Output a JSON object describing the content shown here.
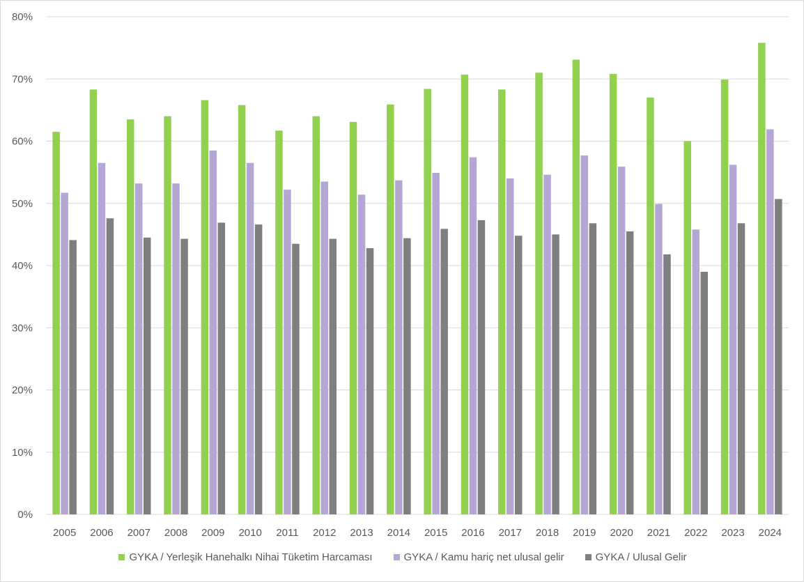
{
  "chart_data": {
    "type": "bar",
    "title": "",
    "xlabel": "",
    "ylabel": "",
    "ylim": [
      0,
      80
    ],
    "y_ticks": [
      "0%",
      "10%",
      "20%",
      "30%",
      "40%",
      "50%",
      "60%",
      "70%",
      "80%"
    ],
    "grid": true,
    "legend_position": "bottom",
    "categories": [
      "2005",
      "2006",
      "2007",
      "2008",
      "2009",
      "2010",
      "2011",
      "2012",
      "2013",
      "2014",
      "2015",
      "2016",
      "2017",
      "2018",
      "2019",
      "2020",
      "2021",
      "2022",
      "2023",
      "2024"
    ],
    "series": [
      {
        "name": "GYKA / Yerleşik Hanehalkı Nihai Tüketim Harcaması",
        "color": "#92d050",
        "values": [
          61.5,
          68.3,
          63.5,
          64.0,
          66.6,
          65.8,
          61.7,
          64.0,
          63.1,
          65.9,
          68.4,
          70.7,
          68.3,
          71.0,
          73.1,
          70.8,
          67.0,
          60.0,
          69.9,
          75.8
        ]
      },
      {
        "name": "GYKA / Kamu hariç net ulusal gelir",
        "color": "#b4a7d6",
        "values": [
          51.7,
          56.5,
          53.2,
          53.2,
          58.5,
          56.5,
          52.2,
          53.5,
          51.4,
          53.7,
          54.9,
          57.4,
          54.0,
          54.6,
          57.7,
          55.9,
          49.9,
          45.8,
          56.2,
          61.9
        ]
      },
      {
        "name": "GYKA / Ulusal Gelir",
        "color": "#7f7f7f",
        "values": [
          44.1,
          47.6,
          44.5,
          44.3,
          46.9,
          46.6,
          43.5,
          44.3,
          42.8,
          44.4,
          45.9,
          47.3,
          44.8,
          45.0,
          46.8,
          45.5,
          41.8,
          39.0,
          46.8,
          50.7
        ]
      }
    ]
  }
}
